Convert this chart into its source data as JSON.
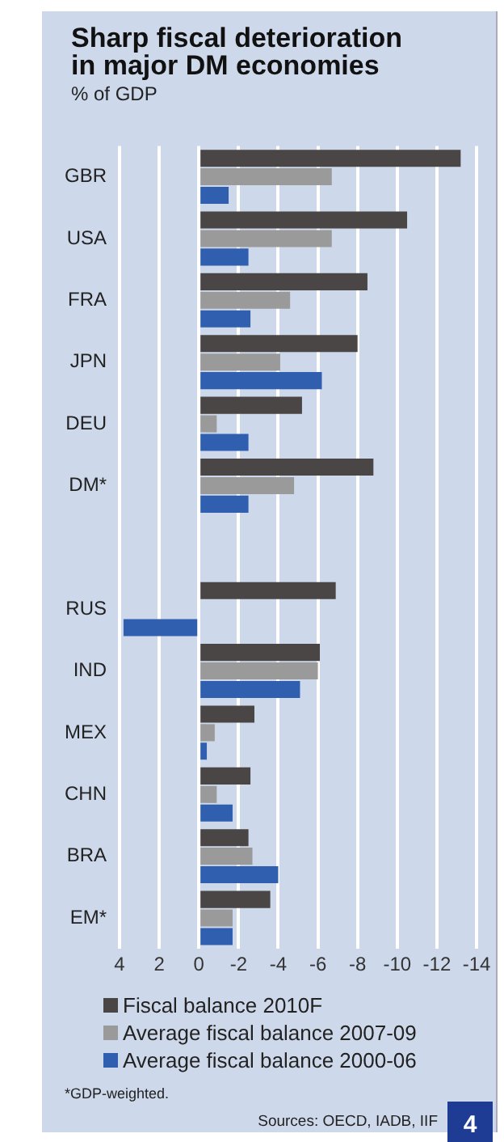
{
  "chart_data": {
    "type": "bar",
    "orientation": "horizontal",
    "title": "Sharp fiscal deterioration in major DM economies",
    "subtitle": "% of GDP",
    "categories": [
      "GBR",
      "USA",
      "FRA",
      "JPN",
      "DEU",
      "DM*",
      null,
      "RUS",
      "IND",
      "MEX",
      "CHN",
      "BRA",
      "EM*"
    ],
    "series": [
      {
        "name": "Fiscal balance 2010F",
        "color": "#4a4646",
        "values": [
          -13.2,
          -10.5,
          -8.5,
          -8.0,
          -5.2,
          -8.8,
          null,
          -6.9,
          -6.1,
          -2.8,
          -2.6,
          -2.5,
          -3.6
        ]
      },
      {
        "name": "Average fiscal balance 2007-09",
        "color": "#9b9a9a",
        "values": [
          -6.7,
          -6.7,
          -4.6,
          -4.1,
          -0.9,
          -4.8,
          null,
          null,
          -6.0,
          -0.8,
          -0.9,
          -2.7,
          -1.7
        ]
      },
      {
        "name": "Average fiscal balance 2000-06",
        "color": "#2f5fae",
        "values": [
          -1.5,
          -2.5,
          -2.6,
          -6.2,
          -2.5,
          -2.5,
          null,
          3.8,
          -5.1,
          -0.4,
          -1.7,
          -4.0,
          -1.7
        ]
      }
    ],
    "xlim": [
      4,
      -14
    ],
    "xticks": [
      4,
      2,
      0,
      -2,
      -4,
      -6,
      -8,
      -10,
      -12,
      -14
    ],
    "grid": "x",
    "legend": "bottom",
    "annotations": [
      "*GDP-weighted.",
      "Sources: OECD, IADB, IIF",
      "4"
    ]
  }
}
